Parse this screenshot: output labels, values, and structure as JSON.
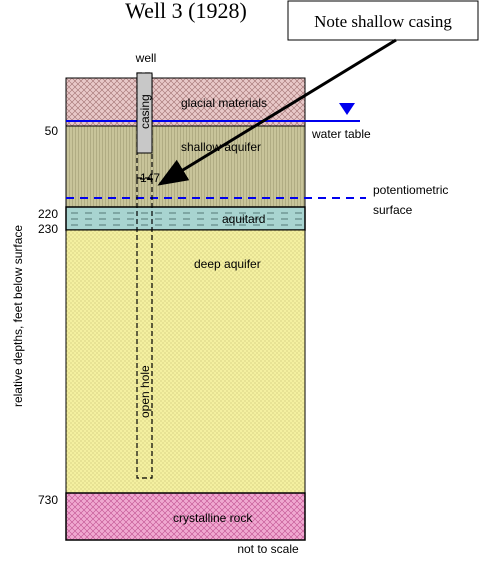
{
  "title": "Well 3 (1928)",
  "note": "Note shallow casing",
  "well_label": "well",
  "casing_label": "casing",
  "casing_depth": 147,
  "open_hole_label": "open hole",
  "layers": [
    {
      "label": "glacial materials"
    },
    {
      "label": "shallow aquifer"
    },
    {
      "label": "aquitard"
    },
    {
      "label": "deep aquifer"
    },
    {
      "label": "crystalline rock"
    }
  ],
  "water_table": "water table",
  "potentiometric_surface": [
    "potentiometric",
    "surface"
  ],
  "depths": [
    50,
    220,
    230,
    730
  ],
  "y_axis_label": "relative depths, feet below surface",
  "footer": "not to scale"
}
